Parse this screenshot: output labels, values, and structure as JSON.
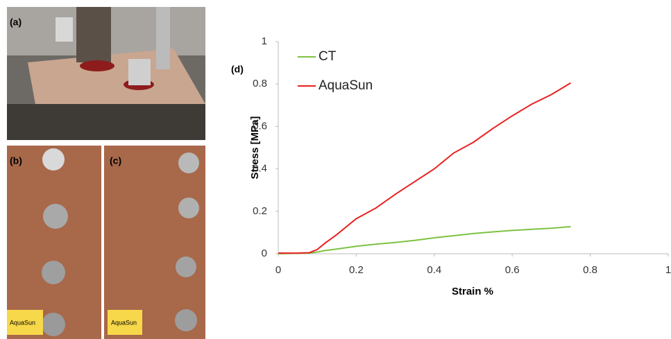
{
  "panels": [
    {
      "label": "(a)"
    },
    {
      "label": "(b)",
      "tag": "AquaSun"
    },
    {
      "label": "(c)",
      "tag": "AquaSun"
    }
  ],
  "chart_data": {
    "type": "line",
    "panel_label": "(d)",
    "x_label": "Strain %",
    "y_label": "Stress [MPa]",
    "x": [
      0,
      0.05,
      0.08,
      0.1,
      0.12,
      0.15,
      0.2,
      0.25,
      0.3,
      0.35,
      0.4,
      0.45,
      0.5,
      0.55,
      0.6,
      0.65,
      0.7,
      0.75
    ],
    "series": [
      {
        "name": "CT",
        "color": "#7dc242",
        "values": [
          0,
          0.002,
          0.003,
          0.008,
          0.015,
          0.022,
          0.035,
          0.045,
          0.053,
          0.063,
          0.075,
          0.085,
          0.095,
          0.103,
          0.11,
          0.115,
          0.12,
          0.128
        ]
      },
      {
        "name": "AquaSun",
        "color": "#e8201f",
        "values": [
          0.003,
          0.003,
          0.005,
          0.02,
          0.05,
          0.09,
          0.165,
          0.215,
          0.28,
          0.34,
          0.4,
          0.475,
          0.525,
          0.59,
          0.65,
          0.705,
          0.75,
          0.805
        ]
      }
    ],
    "xlim": [
      0,
      1
    ],
    "ylim": [
      0,
      1
    ],
    "xticks": [
      0,
      0.2,
      0.4,
      0.6,
      0.8,
      1
    ],
    "yticks": [
      0,
      0.2,
      0.4,
      0.6,
      0.8,
      1
    ],
    "grid": false,
    "legend": "top-left"
  }
}
